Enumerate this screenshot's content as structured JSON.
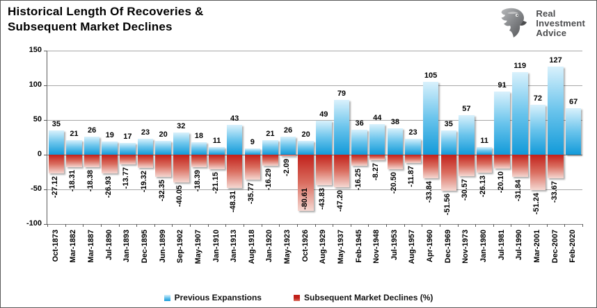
{
  "title": {
    "line1": "Historical Length Of Recoveries &",
    "line2": "Subsequent Market Declines"
  },
  "logo": {
    "lines": [
      "Real",
      "Investment",
      "Advice"
    ]
  },
  "chart_data": {
    "type": "bar",
    "title": "Historical Length Of Recoveries & Subsequent Market Declines",
    "categories": [
      "Oct-1873",
      "Mar-1882",
      "Mar-1887",
      "Jul-1890",
      "Jan-1893",
      "Dec-1895",
      "Jun-1899",
      "Sep-1902",
      "May-1907",
      "Jan-1910",
      "Jan-1913",
      "Aug-1918",
      "Jan-1920",
      "May-1923",
      "Oct-1926",
      "Aug-1929",
      "May-1937",
      "Feb-1945",
      "Nov-1948",
      "Jul-1953",
      "Aug-1957",
      "Apr-1960",
      "Dec-1969",
      "Nov-1973",
      "Jan-1980",
      "Jul-1981",
      "Jul-1990",
      "Mar-2001",
      "Dec-2007",
      "Feb-2020"
    ],
    "series": [
      {
        "name": "Previous Expanstions",
        "legend_color": "#31a8e0",
        "gradient": [
          "#d9f1fc",
          "#6ac4ec",
          "#129ad9"
        ],
        "values": [
          35,
          21,
          26,
          19,
          17,
          23,
          20,
          32,
          18,
          11,
          43,
          9,
          21,
          26,
          20,
          49,
          79,
          36,
          44,
          38,
          23,
          105,
          35,
          57,
          11,
          91,
          119,
          72,
          127,
          67
        ]
      },
      {
        "name": "Subsequent Market Declines (%)",
        "legend_color": "#d5372c",
        "gradient": [
          "#c1201a",
          "#da6e60",
          "#f5d8d2"
        ],
        "values": [
          -27.12,
          -18.31,
          -18.38,
          -26.93,
          -13.77,
          -19.32,
          -32.35,
          -40.05,
          -18.39,
          -21.15,
          -48.31,
          -35.77,
          -16.29,
          -2.09,
          -80.61,
          -43.83,
          -47.2,
          -16.25,
          -8.27,
          -20.5,
          -11.87,
          -33.84,
          -51.56,
          -30.57,
          -26.13,
          -20.1,
          -31.84,
          -51.24,
          -33.67,
          null
        ],
        "labels": [
          "-27.12",
          "-18.31",
          "-18.38",
          "-26.93",
          "-13.77",
          "-19.32",
          "-32.35",
          "-40.05",
          "-18.39",
          "-21.15",
          "-48.31",
          "-35.77",
          "-16.29",
          "-2.09",
          "-80.61",
          "-43.83",
          "-47.20",
          "-16.25",
          "-8.27",
          "-20.50",
          "-11.87",
          "-33.84",
          "-51.56",
          "-30.57",
          "-26.13",
          "-20.10",
          "-31.84",
          "-51.24",
          "-33.67",
          ""
        ]
      }
    ],
    "ylim": [
      -100,
      150
    ],
    "yticks": [
      150,
      100,
      50,
      0,
      -50,
      -100
    ],
    "grid": true,
    "legend_position": "bottom"
  }
}
